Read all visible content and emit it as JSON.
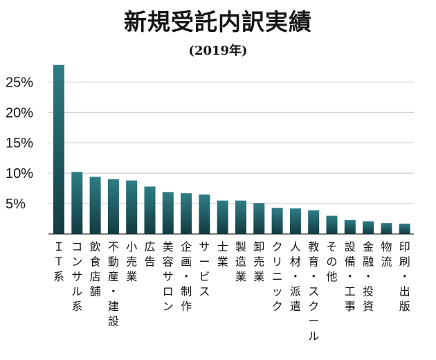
{
  "chart_data": {
    "type": "bar",
    "title": "新規受託内訳実績",
    "subtitle": "(2019年)",
    "xlabel": "",
    "ylabel": "",
    "ylim": [
      0,
      0.28
    ],
    "yticks": [
      0.05,
      0.1,
      0.15,
      0.2,
      0.25
    ],
    "ytick_labels": [
      "5%",
      "10%",
      "15%",
      "20%",
      "25%"
    ],
    "grid": true,
    "legend": "none",
    "colors": {
      "bar_top": "#2f7d86",
      "bar_bottom": "#123b40",
      "grid": "#c4c4c4",
      "axis": "#555555",
      "text": "#141414"
    },
    "categories": [
      "ＩＴ系",
      "コンサル系",
      "飲食店舗",
      "不動産・建設",
      "小売業",
      "広告",
      "美容サロン",
      "企画・制作",
      "サービス",
      "士業",
      "製造業",
      "卸売業",
      "クリニック",
      "人材・派遣",
      "教育・スクール",
      "その他",
      "設備・工事",
      "金融・投資",
      "物流",
      "印刷・出版"
    ],
    "values": [
      0.278,
      0.102,
      0.094,
      0.09,
      0.088,
      0.078,
      0.069,
      0.067,
      0.065,
      0.055,
      0.055,
      0.051,
      0.043,
      0.042,
      0.039,
      0.03,
      0.023,
      0.021,
      0.018,
      0.017
    ]
  }
}
